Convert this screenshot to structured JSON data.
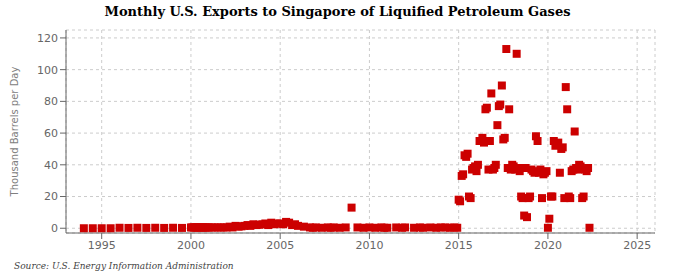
{
  "chart_data": {
    "type": "scatter",
    "title": "Monthly U.S. Exports to Singapore of Liquified Petroleum Gases",
    "ylabel": "Thousand Barrels per Day",
    "annotation": "Source: U.S. Energy Information Administration",
    "xlim": [
      1993,
      2026
    ],
    "ylim": [
      -3,
      125
    ],
    "xticks": [
      1995,
      2000,
      2005,
      2010,
      2015,
      2020,
      2025
    ],
    "yticks": [
      0,
      20,
      40,
      60,
      80,
      100,
      120
    ],
    "grid": true,
    "color": "#cc0000",
    "marker": "square",
    "x": [
      1994.0,
      1994.5,
      1995.0,
      1995.5,
      1996.0,
      1996.5,
      1997.0,
      1997.5,
      1998.0,
      1998.5,
      1999.0,
      1999.5,
      2000.0,
      2000.08,
      2000.17,
      2000.25,
      2000.33,
      2000.42,
      2000.5,
      2000.58,
      2000.67,
      2000.75,
      2000.83,
      2000.92,
      2001.0,
      2001.17,
      2001.33,
      2001.5,
      2001.67,
      2001.83,
      2002.0,
      2002.17,
      2002.33,
      2002.5,
      2002.67,
      2002.83,
      2003.0,
      2003.17,
      2003.33,
      2003.5,
      2003.67,
      2003.83,
      2004.0,
      2004.17,
      2004.33,
      2004.5,
      2004.67,
      2004.83,
      2005.0,
      2005.17,
      2005.33,
      2005.5,
      2005.67,
      2005.83,
      2006.0,
      2006.33,
      2006.67,
      2006.83,
      2007.0,
      2007.33,
      2007.67,
      2007.83,
      2008.0,
      2008.33,
      2008.67,
      2009.0,
      2009.33,
      2009.67,
      2010.0,
      2010.33,
      2010.67,
      2010.83,
      2011.0,
      2011.5,
      2011.83,
      2012.0,
      2012.5,
      2012.83,
      2013.0,
      2013.42,
      2013.75,
      2014.0,
      2014.25,
      2014.5,
      2014.75,
      2014.92,
      2015.0,
      2015.08,
      2015.17,
      2015.25,
      2015.33,
      2015.42,
      2015.5,
      2015.58,
      2015.67,
      2015.75,
      2015.83,
      2015.92,
      2016.0,
      2016.08,
      2016.17,
      2016.25,
      2016.33,
      2016.42,
      2016.5,
      2016.58,
      2016.67,
      2016.75,
      2016.83,
      2016.92,
      2017.0,
      2017.08,
      2017.17,
      2017.25,
      2017.33,
      2017.42,
      2017.5,
      2017.58,
      2017.67,
      2017.75,
      2017.83,
      2017.92,
      2018.0,
      2018.08,
      2018.17,
      2018.25,
      2018.33,
      2018.42,
      2018.5,
      2018.58,
      2018.67,
      2018.75,
      2018.83,
      2018.92,
      2019.0,
      2019.08,
      2019.17,
      2019.25,
      2019.33,
      2019.42,
      2019.5,
      2019.58,
      2019.67,
      2019.75,
      2019.83,
      2019.92,
      2020.0,
      2020.08,
      2020.17,
      2020.25,
      2020.33,
      2020.42,
      2020.5,
      2020.58,
      2020.67,
      2020.75,
      2020.83,
      2020.92,
      2021.0,
      2021.08,
      2021.17,
      2021.25,
      2021.33,
      2021.42,
      2021.5,
      2021.58,
      2021.67,
      2021.75,
      2021.83,
      2021.92,
      2022.0,
      2022.08,
      2022.17,
      2022.25,
      2022.33
    ],
    "values": [
      0.0,
      0.0,
      0.0,
      0.0,
      0.3,
      0.2,
      0.3,
      0.2,
      0.3,
      0.2,
      0.3,
      0.2,
      0.5,
      0.5,
      0.5,
      0.5,
      0.5,
      0.5,
      0.5,
      0.5,
      0.5,
      0.5,
      0.5,
      0.5,
      0.5,
      0.5,
      0.5,
      0.5,
      0.5,
      0.5,
      0.5,
      1.0,
      0.5,
      1.5,
      1.0,
      1.2,
      1.5,
      2.0,
      1.5,
      2.5,
      2.0,
      2.2,
      2.5,
      3.0,
      2.0,
      3.5,
      2.5,
      3.0,
      3.0,
      2.5,
      4.0,
      3.5,
      2.0,
      2.5,
      1.5,
      1.0,
      0.5,
      0.3,
      0.5,
      0.3,
      0.5,
      0.3,
      0.5,
      0.3,
      0.5,
      13.0,
      0.5,
      0.3,
      0.5,
      0.3,
      0.5,
      0.3,
      0.3,
      0.5,
      0.3,
      0.5,
      0.3,
      0.5,
      0.3,
      0.5,
      0.3,
      0.5,
      0.5,
      0.3,
      0.5,
      0.3,
      18.0,
      17.0,
      33.0,
      34.0,
      46.0,
      45.0,
      47.0,
      20.0,
      19.0,
      37.0,
      38.0,
      39.0,
      36.0,
      40.0,
      55.0,
      55.0,
      57.0,
      54.0,
      75.0,
      76.0,
      37.0,
      55.0,
      85.0,
      37.0,
      38.0,
      40.0,
      65.0,
      77.0,
      78.0,
      90.0,
      56.0,
      57.0,
      113.0,
      38.0,
      75.0,
      37.0,
      40.0,
      39.0,
      37.0,
      110.0,
      38.0,
      36.0,
      20.0,
      19.0,
      8.0,
      38.0,
      7.0,
      19.0,
      20.0,
      37.0,
      36.0,
      35.0,
      58.0,
      55.0,
      35.0,
      37.0,
      19.0,
      34.0,
      35.0,
      36.0,
      0.3,
      6.0,
      20.0,
      20.0,
      55.0,
      52.0,
      53.0,
      54.0,
      35.0,
      50.0,
      51.0,
      19.0,
      89.0,
      75.0,
      20.0,
      19.0,
      36.0,
      37.0,
      61.0,
      38.0,
      37.0,
      40.0,
      39.0,
      19.0,
      20.0,
      37.0,
      36.0,
      38.0,
      0.3
    ]
  }
}
